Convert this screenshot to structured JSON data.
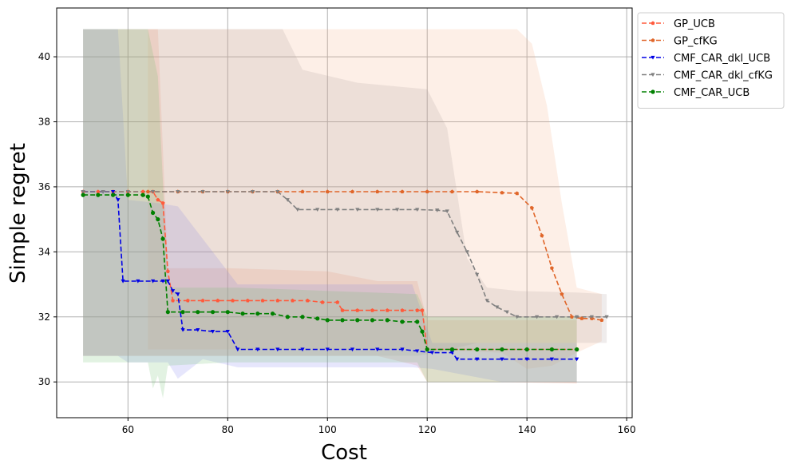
{
  "chart_data": {
    "type": "line",
    "xlabel": "Cost",
    "ylabel": "Simple regret",
    "xlim": [
      45.7,
      161.1
    ],
    "ylim": [
      28.9,
      41.5
    ],
    "xticks": [
      60,
      80,
      100,
      120,
      140,
      160
    ],
    "yticks": [
      30,
      32,
      34,
      36,
      38,
      40
    ],
    "grid": true,
    "legend_position": "outside-top-right",
    "series": [
      {
        "name": "GP_UCB",
        "color": "#ff5a3c",
        "marker": "pentagon",
        "band_color": "#f08a6a",
        "points": [
          [
            51,
            35.85
          ],
          [
            54,
            35.85
          ],
          [
            57,
            35.85
          ],
          [
            60,
            35.85
          ],
          [
            63,
            35.85
          ],
          [
            65,
            35.85
          ],
          [
            66,
            35.6
          ],
          [
            67,
            35.5
          ],
          [
            68,
            33.4
          ],
          [
            69,
            32.5
          ],
          [
            72,
            32.5
          ],
          [
            75,
            32.5
          ],
          [
            78,
            32.5
          ],
          [
            81,
            32.5
          ],
          [
            84,
            32.5
          ],
          [
            87,
            32.5
          ],
          [
            90,
            32.5
          ],
          [
            93,
            32.5
          ],
          [
            96,
            32.5
          ],
          [
            99,
            32.45
          ],
          [
            102,
            32.45
          ],
          [
            103,
            32.2
          ],
          [
            106,
            32.2
          ],
          [
            109,
            32.2
          ],
          [
            112,
            32.2
          ],
          [
            115,
            32.2
          ],
          [
            118,
            32.2
          ],
          [
            119,
            32.2
          ],
          [
            120,
            31.0
          ],
          [
            125,
            31.0
          ],
          [
            130,
            31.0
          ],
          [
            135,
            31.0
          ],
          [
            140,
            31.0
          ],
          [
            145,
            31.0
          ],
          [
            150,
            31.0
          ]
        ],
        "band_upper": [
          [
            51,
            40.85
          ],
          [
            62,
            40.85
          ],
          [
            64,
            40.85
          ],
          [
            66,
            40.85
          ],
          [
            68,
            33.5
          ],
          [
            80,
            33.5
          ],
          [
            100,
            33.4
          ],
          [
            110,
            33.1
          ],
          [
            118,
            33.1
          ],
          [
            120,
            31.9
          ],
          [
            135,
            31.9
          ],
          [
            150,
            31.9
          ]
        ],
        "band_lower": [
          [
            51,
            30.8
          ],
          [
            60,
            30.8
          ],
          [
            66,
            30.8
          ],
          [
            70,
            30.8
          ],
          [
            90,
            30.8
          ],
          [
            110,
            30.8
          ],
          [
            118,
            30.5
          ],
          [
            120,
            30.0
          ],
          [
            135,
            30.0
          ],
          [
            150,
            29.95
          ]
        ]
      },
      {
        "name": "GP_cfKG",
        "color": "#e0662a",
        "marker": "pentagon",
        "band_color": "#f5b088",
        "points": [
          [
            64,
            35.85
          ],
          [
            70,
            35.85
          ],
          [
            75,
            35.85
          ],
          [
            80,
            35.85
          ],
          [
            85,
            35.85
          ],
          [
            90,
            35.85
          ],
          [
            95,
            35.85
          ],
          [
            100,
            35.85
          ],
          [
            105,
            35.85
          ],
          [
            110,
            35.85
          ],
          [
            115,
            35.85
          ],
          [
            120,
            35.85
          ],
          [
            125,
            35.85
          ],
          [
            130,
            35.85
          ],
          [
            135,
            35.82
          ],
          [
            138,
            35.8
          ],
          [
            141,
            35.35
          ],
          [
            143,
            34.5
          ],
          [
            145,
            33.5
          ],
          [
            147,
            32.7
          ],
          [
            149,
            32.0
          ],
          [
            151,
            31.95
          ],
          [
            153,
            31.95
          ],
          [
            155,
            31.9
          ]
        ],
        "band_upper": [
          [
            64,
            40.85
          ],
          [
            90,
            40.85
          ],
          [
            138,
            40.85
          ],
          [
            141,
            40.4
          ],
          [
            144,
            38.5
          ],
          [
            147,
            35.5
          ],
          [
            150,
            32.9
          ],
          [
            155,
            32.7
          ]
        ],
        "band_lower": [
          [
            64,
            31.0
          ],
          [
            90,
            31.0
          ],
          [
            120,
            31.0
          ],
          [
            135,
            30.9
          ],
          [
            140,
            30.4
          ],
          [
            145,
            30.5
          ],
          [
            150,
            30.9
          ],
          [
            155,
            31.25
          ]
        ]
      },
      {
        "name": "CMF_CAR_dkl_UCB",
        "color": "#0000e6",
        "marker": "triangle-down",
        "band_color": "#8080f0",
        "points": [
          [
            51,
            35.85
          ],
          [
            55,
            35.85
          ],
          [
            57,
            35.85
          ],
          [
            58,
            35.6
          ],
          [
            59,
            33.1
          ],
          [
            62,
            33.1
          ],
          [
            65,
            33.1
          ],
          [
            67,
            33.1
          ],
          [
            68,
            33.1
          ],
          [
            69,
            32.8
          ],
          [
            70,
            32.7
          ],
          [
            71,
            31.6
          ],
          [
            74,
            31.6
          ],
          [
            77,
            31.55
          ],
          [
            80,
            31.55
          ],
          [
            82,
            31.0
          ],
          [
            86,
            31.0
          ],
          [
            90,
            31.0
          ],
          [
            95,
            31.0
          ],
          [
            100,
            31.0
          ],
          [
            105,
            31.0
          ],
          [
            110,
            31.0
          ],
          [
            115,
            31.0
          ],
          [
            118,
            30.95
          ],
          [
            121,
            30.9
          ],
          [
            125,
            30.9
          ],
          [
            126,
            30.7
          ],
          [
            130,
            30.7
          ],
          [
            135,
            30.7
          ],
          [
            140,
            30.7
          ],
          [
            145,
            30.7
          ],
          [
            150,
            30.7
          ]
        ],
        "band_upper": [
          [
            51,
            40.85
          ],
          [
            58,
            40.85
          ],
          [
            60,
            35.6
          ],
          [
            66,
            35.5
          ],
          [
            70,
            35.4
          ],
          [
            82,
            33.0
          ],
          [
            100,
            33.0
          ],
          [
            117,
            33.0
          ],
          [
            121,
            31.2
          ],
          [
            150,
            31.2
          ]
        ],
        "band_lower": [
          [
            51,
            30.8
          ],
          [
            58,
            30.8
          ],
          [
            60,
            30.6
          ],
          [
            68,
            30.6
          ],
          [
            70,
            30.1
          ],
          [
            75,
            30.7
          ],
          [
            82,
            30.45
          ],
          [
            100,
            30.45
          ],
          [
            117,
            30.45
          ],
          [
            121,
            30.4
          ],
          [
            135,
            30.0
          ],
          [
            150,
            30.0
          ]
        ]
      },
      {
        "name": "CMF_CAR_dkl_cfKG",
        "color": "#808080",
        "marker": "triangle-down",
        "band_color": "#b0a0a0",
        "points": [
          [
            51,
            35.85
          ],
          [
            55,
            35.85
          ],
          [
            60,
            35.85
          ],
          [
            65,
            35.85
          ],
          [
            70,
            35.85
          ],
          [
            75,
            35.85
          ],
          [
            80,
            35.85
          ],
          [
            85,
            35.85
          ],
          [
            90,
            35.85
          ],
          [
            92,
            35.6
          ],
          [
            94,
            35.3
          ],
          [
            98,
            35.3
          ],
          [
            102,
            35.3
          ],
          [
            106,
            35.3
          ],
          [
            110,
            35.3
          ],
          [
            114,
            35.3
          ],
          [
            118,
            35.3
          ],
          [
            122,
            35.28
          ],
          [
            124,
            35.25
          ],
          [
            126,
            34.6
          ],
          [
            128,
            34.0
          ],
          [
            130,
            33.3
          ],
          [
            132,
            32.5
          ],
          [
            134,
            32.3
          ],
          [
            136,
            32.15
          ],
          [
            138,
            32.0
          ],
          [
            142,
            32.0
          ],
          [
            146,
            32.0
          ],
          [
            150,
            32.0
          ],
          [
            153,
            32.0
          ],
          [
            156,
            32.0
          ]
        ],
        "band_upper": [
          [
            51,
            40.85
          ],
          [
            62,
            40.85
          ],
          [
            91,
            40.85
          ],
          [
            95,
            39.6
          ],
          [
            106,
            39.2
          ],
          [
            120,
            39.0
          ],
          [
            124,
            37.8
          ],
          [
            128,
            33.8
          ],
          [
            132,
            32.9
          ],
          [
            138,
            32.8
          ],
          [
            150,
            32.75
          ],
          [
            156,
            32.7
          ]
        ],
        "band_lower": [
          [
            51,
            30.8
          ],
          [
            62,
            30.8
          ],
          [
            91,
            30.8
          ],
          [
            100,
            30.8
          ],
          [
            118,
            30.8
          ],
          [
            122,
            30.9
          ],
          [
            130,
            31.2
          ],
          [
            140,
            31.2
          ],
          [
            150,
            31.2
          ],
          [
            156,
            31.2
          ]
        ]
      },
      {
        "name": "CMF_CAR_UCB",
        "color": "#008000",
        "marker": "circle",
        "band_color": "#6fbf6f",
        "points": [
          [
            51,
            35.75
          ],
          [
            54,
            35.75
          ],
          [
            57,
            35.75
          ],
          [
            60,
            35.75
          ],
          [
            63,
            35.75
          ],
          [
            64,
            35.7
          ],
          [
            65,
            35.2
          ],
          [
            66,
            35.0
          ],
          [
            67,
            34.4
          ],
          [
            68,
            32.15
          ],
          [
            71,
            32.15
          ],
          [
            74,
            32.15
          ],
          [
            77,
            32.15
          ],
          [
            80,
            32.15
          ],
          [
            83,
            32.1
          ],
          [
            86,
            32.1
          ],
          [
            89,
            32.1
          ],
          [
            92,
            32.0
          ],
          [
            95,
            32.0
          ],
          [
            98,
            31.95
          ],
          [
            100,
            31.9
          ],
          [
            103,
            31.9
          ],
          [
            106,
            31.9
          ],
          [
            109,
            31.9
          ],
          [
            112,
            31.9
          ],
          [
            115,
            31.85
          ],
          [
            118,
            31.85
          ],
          [
            119,
            31.55
          ],
          [
            120,
            31.0
          ],
          [
            125,
            31.0
          ],
          [
            130,
            31.0
          ],
          [
            135,
            31.0
          ],
          [
            140,
            31.0
          ],
          [
            145,
            31.0
          ],
          [
            150,
            31.0
          ]
        ],
        "band_upper": [
          [
            51,
            40.85
          ],
          [
            62,
            40.85
          ],
          [
            64,
            40.85
          ],
          [
            66,
            39.4
          ],
          [
            68,
            32.9
          ],
          [
            82,
            32.9
          ],
          [
            100,
            32.8
          ],
          [
            118,
            32.7
          ],
          [
            120,
            32.0
          ],
          [
            150,
            32.0
          ]
        ],
        "band_lower": [
          [
            51,
            30.6
          ],
          [
            62,
            30.6
          ],
          [
            64,
            30.6
          ],
          [
            65,
            29.8
          ],
          [
            66,
            30.2
          ],
          [
            67,
            29.5
          ],
          [
            68,
            30.5
          ],
          [
            80,
            30.6
          ],
          [
            100,
            30.6
          ],
          [
            118,
            30.6
          ],
          [
            120,
            30.0
          ],
          [
            150,
            30.0
          ]
        ]
      }
    ]
  }
}
